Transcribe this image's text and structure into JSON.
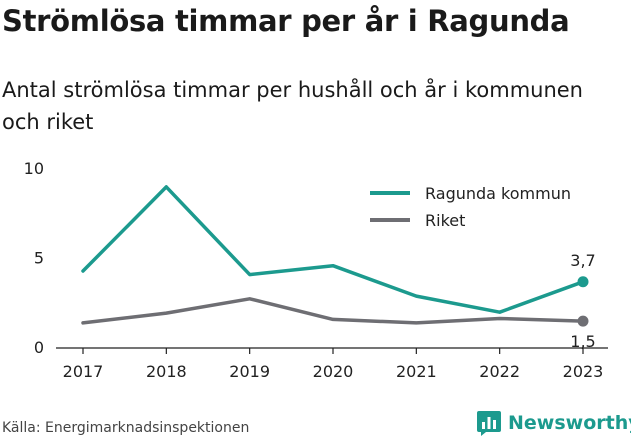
{
  "title": "Strömlösa timmar per år i Ragunda",
  "subtitle": "Antal strömlösa timmar per hushåll och år i kommunen och riket",
  "source": "Källa: Energimarknadsinspektionen",
  "brand": {
    "name": "Newsworthy",
    "icon": "bar-chart-logo-icon",
    "color": "#1c9a8e"
  },
  "chart_data": {
    "type": "line",
    "x": [
      "2017",
      "2018",
      "2019",
      "2020",
      "2021",
      "2022",
      "2023"
    ],
    "ylim": [
      0,
      10
    ],
    "yticks": [
      0,
      5,
      10
    ],
    "grid": false,
    "legend_position": "top-right",
    "series": [
      {
        "name": "Ragunda kommun",
        "color": "#1c9a8e",
        "values": [
          4.3,
          9.0,
          4.1,
          4.6,
          2.9,
          2.0,
          3.7
        ],
        "end_label": "3,7"
      },
      {
        "name": "Riket",
        "color": "#6e6e73",
        "values": [
          1.4,
          1.95,
          2.75,
          1.6,
          1.4,
          1.65,
          1.5
        ],
        "end_label": "1,5"
      }
    ]
  }
}
